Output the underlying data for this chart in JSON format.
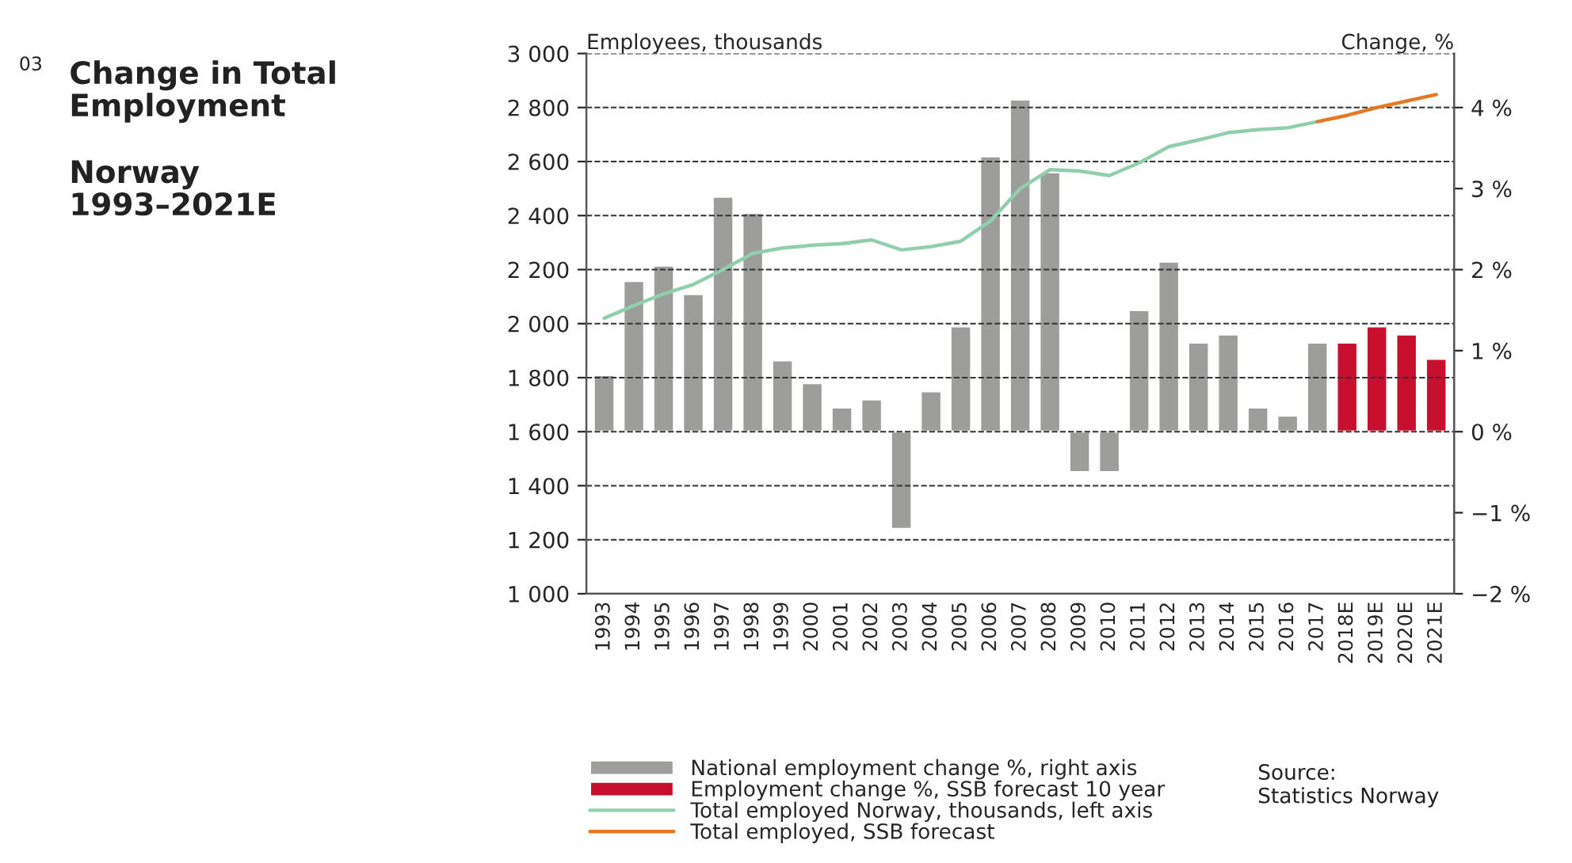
{
  "chart_data": {
    "type": "bar",
    "title": "Change in Total\nEmployment",
    "subtitle": "Norway\n1993–2021E",
    "ylabel": "Employees, thousands",
    "y2label": "Change, %",
    "annotations": [
      "03",
      "Source:\nStatistics Norway"
    ],
    "categories": [
      "1993",
      "1994",
      "1995",
      "1996",
      "1997",
      "1998",
      "1999",
      "2000",
      "2001",
      "2002",
      "2003",
      "2004",
      "2005",
      "2006",
      "2007",
      "2008",
      "2009",
      "2010",
      "2011",
      "2012",
      "2013",
      "2014",
      "2015",
      "2016",
      "2017",
      "2018E",
      "2019E",
      "2020E",
      "2021E"
    ],
    "series": [
      {
        "name": "National employment change %, right axis",
        "axis": "y2",
        "color": "#9d9d9c",
        "values": [
          0.7,
          1.86,
          2.05,
          1.7,
          2.9,
          2.7,
          0.88,
          0.6,
          0.3,
          0.4,
          -1.2,
          0.5,
          1.3,
          3.4,
          4.1,
          3.2,
          -0.5,
          -0.5,
          1.5,
          2.1,
          1.1,
          1.2,
          0.3,
          0.2,
          1.1,
          null,
          null,
          null,
          null
        ]
      },
      {
        "name": "Employment change %, SSB forecast 10 year",
        "axis": "y2",
        "color": "#c8102e",
        "values": [
          null,
          null,
          null,
          null,
          null,
          null,
          null,
          null,
          null,
          null,
          null,
          null,
          null,
          null,
          null,
          null,
          null,
          null,
          null,
          null,
          null,
          null,
          null,
          null,
          null,
          1.1,
          1.3,
          1.2,
          0.9
        ]
      },
      {
        "name": "Total employed Norway, thousands, left axis",
        "type": "line",
        "axis": "y",
        "color": "#8fcfae",
        "values": [
          2020,
          2067,
          2110,
          2145,
          2200,
          2260,
          2280,
          2290,
          2296,
          2310,
          2273,
          2285,
          2305,
          2380,
          2500,
          2570,
          2565,
          2548,
          2595,
          2655,
          2680,
          2707,
          2718,
          2725,
          2748,
          null,
          null,
          null,
          null
        ]
      },
      {
        "name": "Total employed, SSB forecast",
        "type": "line",
        "axis": "y",
        "color": "#e87722",
        "values": [
          null,
          null,
          null,
          null,
          null,
          null,
          null,
          null,
          null,
          null,
          null,
          null,
          null,
          null,
          null,
          null,
          null,
          null,
          null,
          null,
          null,
          null,
          null,
          null,
          2748,
          2771,
          2800,
          2824,
          2848
        ]
      }
    ],
    "ylim": [
      1000,
      3000
    ],
    "yticks": [
      {
        "value": 1000,
        "label": "1 000"
      },
      {
        "value": 1200,
        "label": "1 200"
      },
      {
        "value": 1400,
        "label": "1 400"
      },
      {
        "value": 1600,
        "label": "1 600"
      },
      {
        "value": 1800,
        "label": "1 800"
      },
      {
        "value": 2000,
        "label": "2 000"
      },
      {
        "value": 2200,
        "label": "2 200"
      },
      {
        "value": 2400,
        "label": "2 400"
      },
      {
        "value": 2600,
        "label": "2 600"
      },
      {
        "value": 2800,
        "label": "2 800"
      },
      {
        "value": 3000,
        "label": "3 000"
      }
    ],
    "y2lim": [
      -2,
      4.667
    ],
    "y2ticks": [
      {
        "value": -2,
        "label": "−2 %"
      },
      {
        "value": -1,
        "label": "−1 %"
      },
      {
        "value": 0,
        "label": "0 %"
      },
      {
        "value": 1,
        "label": "1 %"
      },
      {
        "value": 2,
        "label": "2 %"
      },
      {
        "value": 3,
        "label": "3 %"
      },
      {
        "value": 4,
        "label": "4 %"
      }
    ],
    "grid": "y",
    "legend": "bottom",
    "line_style": "solid"
  }
}
